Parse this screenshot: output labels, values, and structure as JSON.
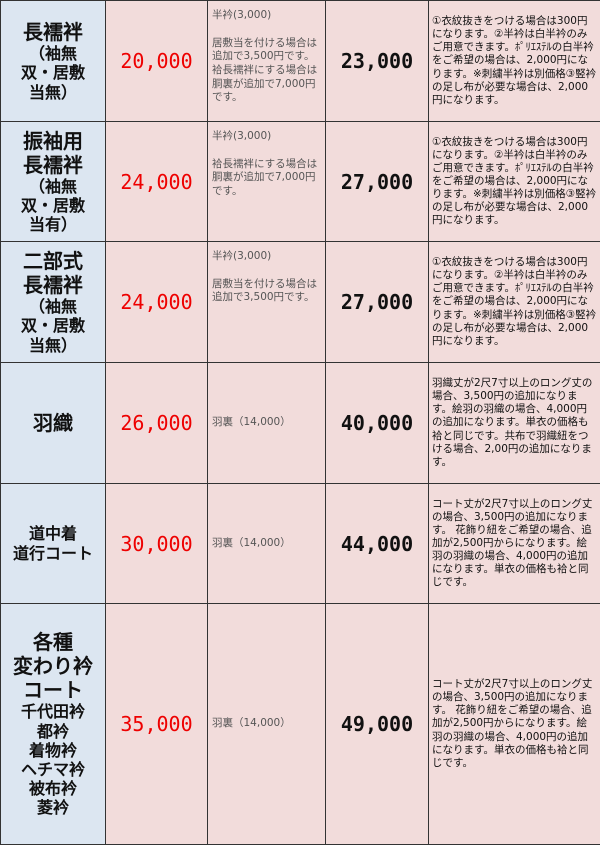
{
  "rows": [
    {
      "name_lines": [
        {
          "t": "長襦袢",
          "s": "big"
        },
        {
          "t": "（袖無",
          "s": "small"
        },
        {
          "t": "双・居敷",
          "s": "small"
        },
        {
          "t": "当無）",
          "s": "small"
        }
      ],
      "price": "20,000",
      "option_top": "半衿(3,000)",
      "option_body": "居敷当を付ける場合は追加で3,500円です。袷長襦袢にする場合は胴裏が追加で7,000円です。",
      "total": "23,000",
      "note": "①衣紋抜きをつける場合は300円になります。②半衿は白半衿のみご用意できます。ﾎﾟﾘｴｽﾃﾙの白半衿をご希望の場合は、2,000円になります。※刺繍半衿は別価格③竪衿の足し布が必要な場合は、2,000円になります。"
    },
    {
      "name_lines": [
        {
          "t": "振袖用",
          "s": "big"
        },
        {
          "t": "長襦袢",
          "s": "big"
        },
        {
          "t": "（袖無",
          "s": "small"
        },
        {
          "t": "双・居敷",
          "s": "small"
        },
        {
          "t": "当有）",
          "s": "small"
        }
      ],
      "price": "24,000",
      "option_top": "半衿(3,000)",
      "option_body": "袷長襦袢にする場合は胴裏が追加で7,000円です。",
      "total": "27,000",
      "note": "①衣紋抜きをつける場合は300円になります。②半衿は白半衿のみご用意できます。ﾎﾟﾘｴｽﾃﾙの白半衿をご希望の場合は、2,000円になります。※刺繍半衿は別価格③竪衿の足し布が必要な場合は、2,000円になります。"
    },
    {
      "name_lines": [
        {
          "t": "二部式",
          "s": "big"
        },
        {
          "t": "長襦袢",
          "s": "big"
        },
        {
          "t": "（袖無",
          "s": "small"
        },
        {
          "t": "双・居敷",
          "s": "small"
        },
        {
          "t": "当無）",
          "s": "small"
        }
      ],
      "price": "24,000",
      "option_top": "半衿(3,000)",
      "option_body": "居敷当を付ける場合は追加で3,500円です。",
      "total": "27,000",
      "note": "①衣紋抜きをつける場合は300円になります。②半衿は白半衿のみご用意できます。ﾎﾟﾘｴｽﾃﾙの白半衿をご希望の場合は、2,000円になります。※刺繍半衿は別価格③竪衿の足し布が必要な場合は、2,000円になります。"
    },
    {
      "name_lines": [
        {
          "t": "羽織",
          "s": "big"
        }
      ],
      "price": "26,000",
      "option_top": "",
      "option_body": "羽裏（14,000）",
      "total": "40,000",
      "note": "羽織丈が2尺7寸以上のロング丈の場合、3,500円の追加になります。絵羽の羽織の場合、4,000円の追加になります。単衣の価格も袷と同じです。共布で羽織紐をつける場合、2,00円の追加になります。"
    },
    {
      "name_lines": [
        {
          "t": "道中着",
          "s": "small"
        },
        {
          "t": "道行コート",
          "s": "small"
        }
      ],
      "price": "30,000",
      "option_top": "",
      "option_body": "羽裏（14,000）",
      "total": "44,000",
      "note": "コート丈が2尺7寸以上のロング丈の場合、3,500円の追加になります。 花飾り紐をご希望の場合、追加が2,500円からになります。絵羽の羽織の場合、4,000円の追加になります。単衣の価格も袷と同じです。"
    },
    {
      "name_lines": [
        {
          "t": "各種",
          "s": "big"
        },
        {
          "t": "変わり衿",
          "s": "big"
        },
        {
          "t": "コート",
          "s": "big"
        },
        {
          "t": "千代田衿",
          "s": "small"
        },
        {
          "t": "都衿",
          "s": "small"
        },
        {
          "t": "着物衿",
          "s": "small"
        },
        {
          "t": "ヘチマ衿",
          "s": "small"
        },
        {
          "t": "被布衿",
          "s": "small"
        },
        {
          "t": "菱衿",
          "s": "small"
        }
      ],
      "price": "35,000",
      "option_top": "",
      "option_body": "羽裏（14,000）",
      "total": "49,000",
      "note": "コート丈が2尺7寸以上のロング丈の場合、3,500円の追加になります。 花飾り紐をご希望の場合、追加が2,500円からになります。絵羽の羽織の場合、4,000円の追加になります。単衣の価格も袷と同じです。"
    }
  ],
  "colors": {
    "name_bg": "#dce6f1",
    "cell_bg": "#f2dcdb",
    "price": "#ee0000"
  }
}
